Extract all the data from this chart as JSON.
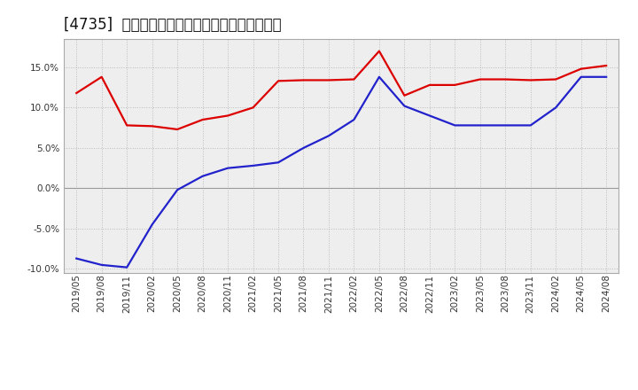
{
  "title": "[4735]  有利子負債キャッシュフロー比率の推移",
  "x_labels": [
    "2019/05",
    "2019/08",
    "2019/11",
    "2020/02",
    "2020/05",
    "2020/08",
    "2020/11",
    "2021/02",
    "2021/05",
    "2021/08",
    "2021/11",
    "2022/02",
    "2022/05",
    "2022/08",
    "2022/11",
    "2023/02",
    "2023/05",
    "2023/08",
    "2023/11",
    "2024/02",
    "2024/05",
    "2024/08"
  ],
  "red_values": [
    11.8,
    13.8,
    7.8,
    7.7,
    7.3,
    8.5,
    9.0,
    10.0,
    13.3,
    13.4,
    13.4,
    13.5,
    17.0,
    11.5,
    12.8,
    12.8,
    13.5,
    13.5,
    13.4,
    13.5,
    14.8,
    15.2
  ],
  "blue_values": [
    -8.7,
    -9.5,
    -9.8,
    -4.5,
    -0.2,
    1.5,
    2.5,
    2.8,
    3.2,
    5.0,
    6.5,
    8.5,
    13.8,
    10.2,
    9.0,
    7.8,
    7.8,
    7.8,
    7.8,
    10.0,
    13.8,
    13.8
  ],
  "red_color": "#dd0000",
  "blue_color": "#2222cc",
  "ylim": [
    -10.5,
    18.5
  ],
  "yticks": [
    -10.0,
    -5.0,
    0.0,
    5.0,
    10.0,
    15.0
  ],
  "bg_color": "#ffffff",
  "plot_bg_color": "#eeeeee",
  "grid_color": "#bbbbbb",
  "title_fontsize": 12,
  "tick_fontsize": 7.5
}
